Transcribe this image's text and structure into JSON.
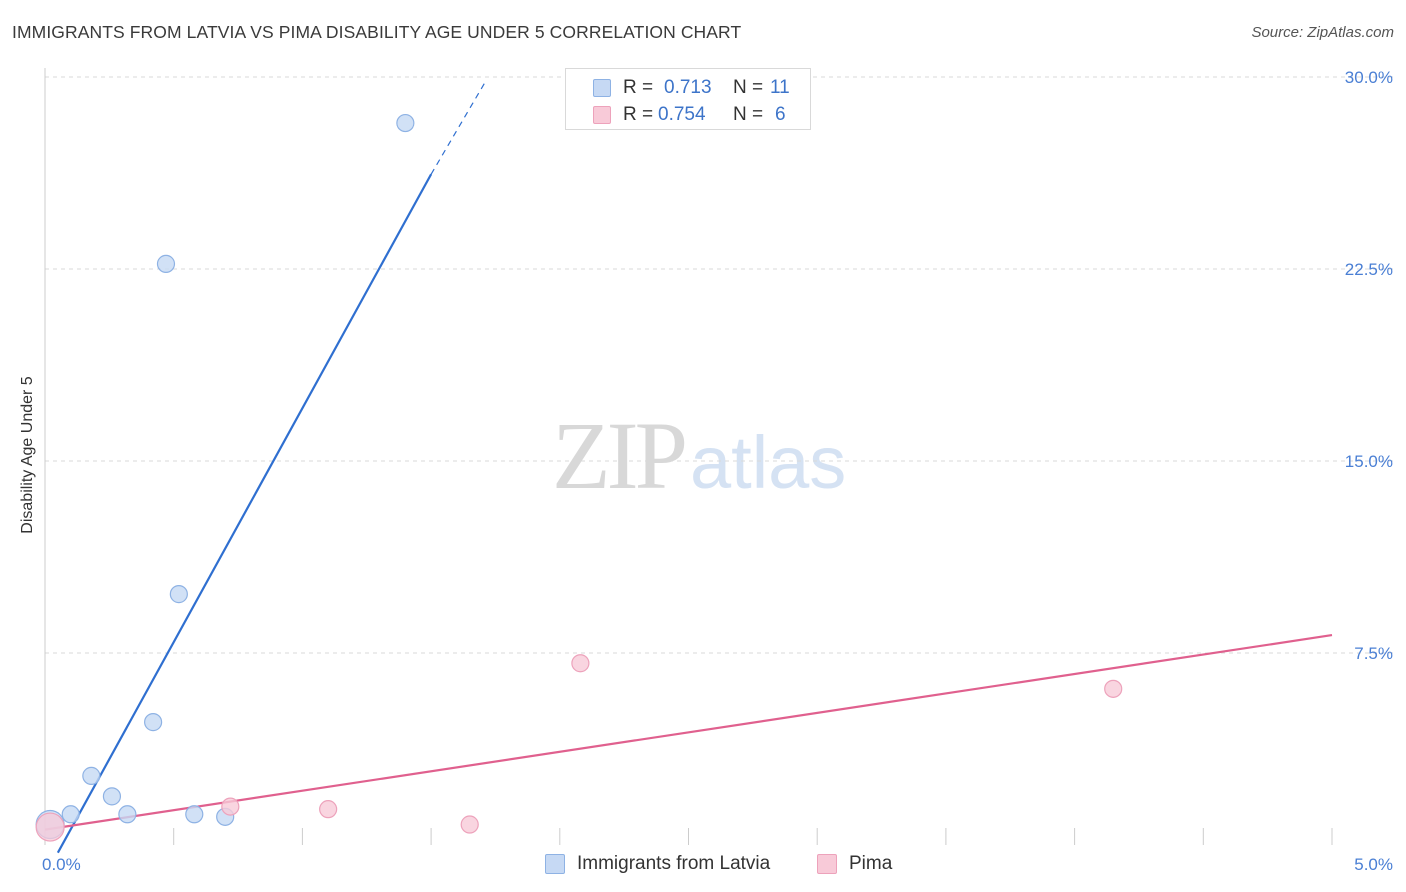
{
  "header": {
    "title": "IMMIGRANTS FROM LATVIA VS PIMA DISABILITY AGE UNDER 5 CORRELATION CHART",
    "source": "Source: ZipAtlas.com"
  },
  "watermark": {
    "zip": "ZIP",
    "atlas": "atlas"
  },
  "stats": {
    "series1": {
      "r_label": "R =",
      "r_value": "0.713",
      "n_label": "N =",
      "n_value": "11"
    },
    "series2": {
      "r_label": "R =",
      "r_value": "0.754",
      "n_label": "N =",
      "n_value": "6"
    }
  },
  "legend": {
    "series1": "Immigrants from Latvia",
    "series2": "Pima"
  },
  "colors": {
    "series1_fill": "#c6d9f4",
    "series1_stroke": "#8eb2e4",
    "series1_line": "#2f6fd0",
    "series2_fill": "#f8cad8",
    "series2_stroke": "#eda2bb",
    "series2_line": "#e0608e",
    "grid": "#d9d9d9",
    "tick_text": "#4a7fd4"
  },
  "chart_data": {
    "type": "scatter",
    "title": "IMMIGRANTS FROM LATVIA VS PIMA DISABILITY AGE UNDER 5 CORRELATION CHART",
    "xlabel": "",
    "ylabel": "Disability Age Under 5",
    "xlim": [
      0.0,
      5.0
    ],
    "ylim": [
      0.0,
      30.0
    ],
    "x_tick_labels": [
      "0.0%",
      "5.0%"
    ],
    "y_tick_labels": [
      "7.5%",
      "15.0%",
      "22.5%",
      "30.0%"
    ],
    "y_tick_values": [
      7.5,
      15.0,
      22.5,
      30.0
    ],
    "grid": true,
    "legend_position": "bottom",
    "series": [
      {
        "name": "Immigrants from Latvia",
        "points": [
          {
            "x": 0.02,
            "y": 0.8,
            "big": true
          },
          {
            "x": 0.1,
            "y": 1.2
          },
          {
            "x": 0.18,
            "y": 2.7
          },
          {
            "x": 0.26,
            "y": 1.9
          },
          {
            "x": 0.32,
            "y": 1.2
          },
          {
            "x": 0.42,
            "y": 4.8
          },
          {
            "x": 0.47,
            "y": 22.7
          },
          {
            "x": 0.52,
            "y": 9.8
          },
          {
            "x": 0.58,
            "y": 1.2
          },
          {
            "x": 0.7,
            "y": 1.1
          },
          {
            "x": 1.4,
            "y": 28.2
          }
        ],
        "trendline": {
          "x_start": 0.05,
          "y_start": -0.3,
          "x_end": 1.5,
          "y_end": 26.2,
          "dashed_to_x": 1.71,
          "dashed_to_y": 29.8
        }
      },
      {
        "name": "Pima",
        "points": [
          {
            "x": 0.02,
            "y": 0.7,
            "big": true
          },
          {
            "x": 0.72,
            "y": 1.5
          },
          {
            "x": 1.1,
            "y": 1.4
          },
          {
            "x": 1.65,
            "y": 0.8
          },
          {
            "x": 2.08,
            "y": 7.1
          },
          {
            "x": 4.15,
            "y": 6.1
          }
        ],
        "trendline": {
          "x_start": 0.0,
          "y_start": 0.6,
          "x_end": 5.0,
          "y_end": 8.2
        }
      }
    ]
  }
}
